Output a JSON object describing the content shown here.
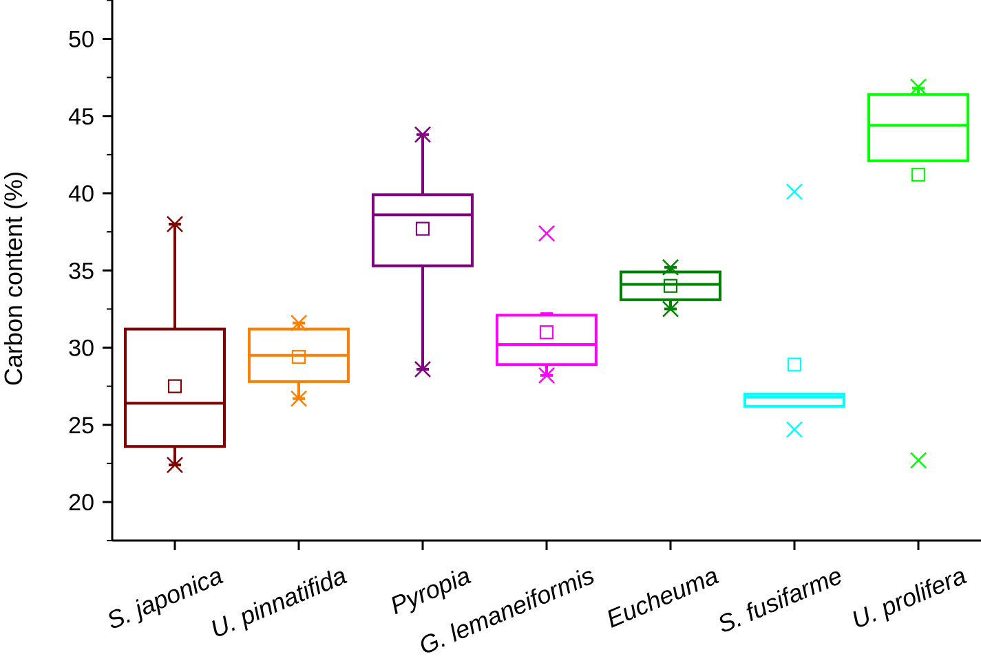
{
  "chart_data": {
    "type": "box",
    "ylabel": "Carbon content (%)",
    "xlabel": "",
    "ylim": [
      17.5,
      52.5
    ],
    "yticks": [
      20,
      25,
      30,
      35,
      40,
      45,
      50
    ],
    "grid": false,
    "categories": [
      "S. japonica",
      "U. pinnatifida",
      "Pyropia",
      "G. lemaneiformis",
      "Eucheuma",
      "S. fusifarme",
      "U. prolifera"
    ],
    "boxes": [
      {
        "name": "S. japonica",
        "color": "#800000",
        "q1": 23.6,
        "median": 26.4,
        "q3": 31.2,
        "whisker_low": 22.4,
        "whisker_high": 38.0,
        "mean": 27.5,
        "min": 22.4,
        "max": 38.0
      },
      {
        "name": "U. pinnatifida",
        "color": "#FF8000",
        "q1": 27.8,
        "median": 29.5,
        "q3": 31.2,
        "whisker_low": 26.7,
        "whisker_high": 31.6,
        "mean": 29.4,
        "min": 26.7,
        "max": 31.6
      },
      {
        "name": "Pyropia",
        "color": "#800080",
        "q1": 35.3,
        "median": 38.6,
        "q3": 39.9,
        "whisker_low": 28.6,
        "whisker_high": 43.8,
        "mean": 37.7,
        "min": 28.6,
        "max": 43.8
      },
      {
        "name": "G. lemaneiformis",
        "color": "#FF00FF",
        "q1": 28.9,
        "median": 30.2,
        "q3": 32.1,
        "whisker_low": 28.2,
        "whisker_high": 32.2,
        "mean": 31.0,
        "min": 28.2,
        "max": 37.4
      },
      {
        "name": "Eucheuma",
        "color": "#008000",
        "q1": 33.1,
        "median": 34.1,
        "q3": 34.9,
        "whisker_low": 32.5,
        "whisker_high": 35.2,
        "mean": 34.0,
        "min": 32.5,
        "max": 35.2
      },
      {
        "name": "S. fusifarme",
        "color": "#00FFFF",
        "q1": 26.2,
        "median": 26.8,
        "q3": 27.0,
        "whisker_low": 26.2,
        "whisker_high": 27.0,
        "mean": 28.9,
        "min": 24.7,
        "max": 40.1
      },
      {
        "name": "U. prolifera",
        "color": "#00FF00",
        "q1": 42.1,
        "median": 44.4,
        "q3": 46.4,
        "whisker_low": 42.1,
        "whisker_high": 46.8,
        "mean": 41.2,
        "min": 22.7,
        "max": 46.9
      }
    ]
  }
}
